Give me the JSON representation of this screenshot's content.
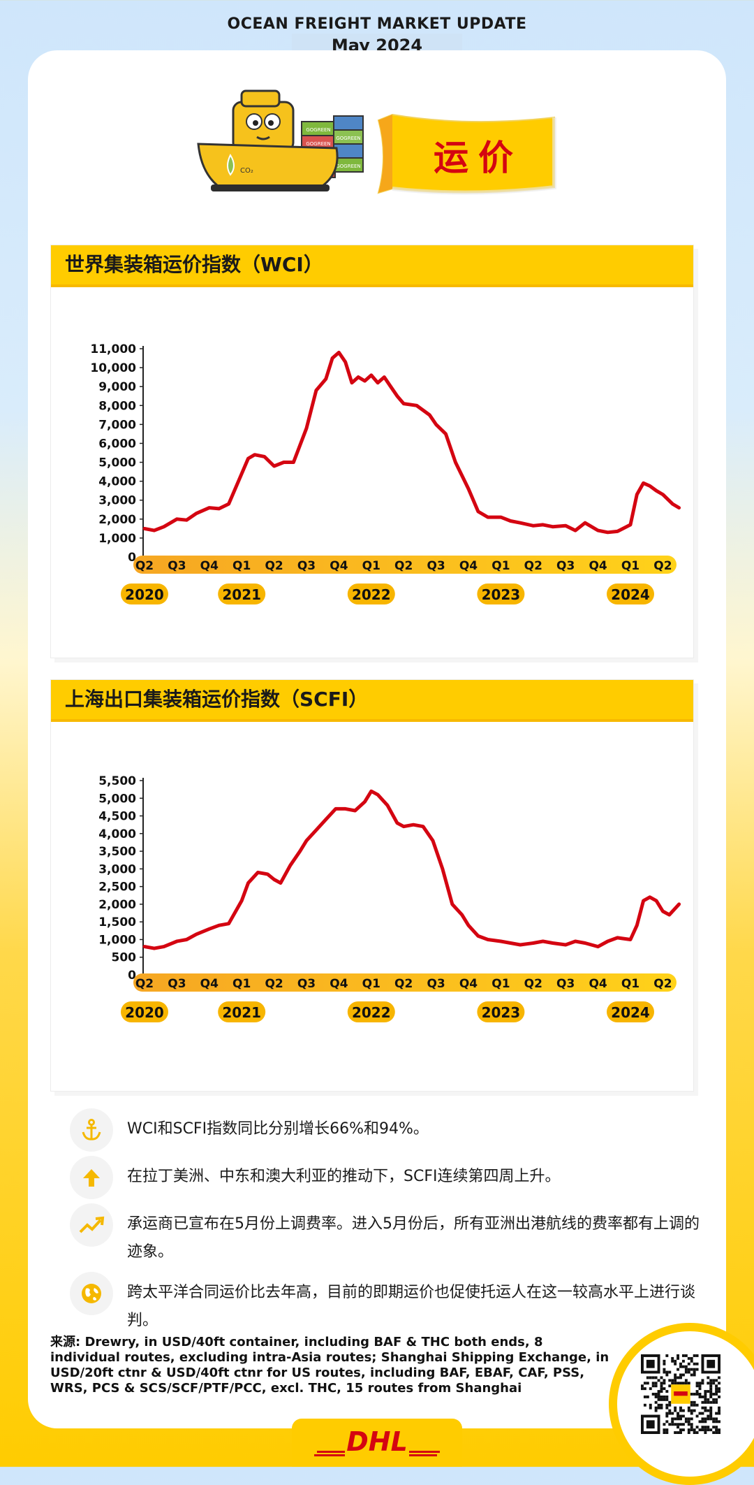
{
  "header": {
    "title": "OCEAN FREIGHT MARKET UPDATE",
    "subtitle": "May 2024"
  },
  "hero": {
    "banner_text": "运价",
    "ship_badge": "CO₂",
    "container_text": "GOGREEN"
  },
  "colors": {
    "brand_yellow": "#ffcc00",
    "dhl_red": "#d40511",
    "line": "#d40511",
    "quarter_bar": "#f7b500"
  },
  "chart_data": [
    {
      "type": "line",
      "title": "世界集装箱运价指数（WCI）",
      "ylim": [
        0,
        11000
      ],
      "yticks": [
        "0",
        "1,000",
        "2,000",
        "3,000",
        "4,000",
        "5,000",
        "6,000",
        "7,000",
        "8,000",
        "9,000",
        "10,000",
        "11,000"
      ],
      "quarters": [
        "Q2",
        "Q3",
        "Q4",
        "Q1",
        "Q2",
        "Q3",
        "Q4",
        "Q1",
        "Q2",
        "Q3",
        "Q4",
        "Q1",
        "Q2",
        "Q3",
        "Q4",
        "Q1",
        "Q2"
      ],
      "years": [
        {
          "label": "2020",
          "q": 0
        },
        {
          "label": "2021",
          "q": 3
        },
        {
          "label": "2022",
          "q": 7
        },
        {
          "label": "2023",
          "q": 11
        },
        {
          "label": "2024",
          "q": 15
        }
      ],
      "x_unit": "quarter index (0 = Q2 2020)",
      "series": [
        {
          "x": [
            0,
            0.3,
            0.6,
            1,
            1.3,
            1.6,
            2,
            2.3,
            2.6,
            3,
            3.2,
            3.4,
            3.7,
            4,
            4.3,
            4.6,
            5,
            5.3,
            5.6,
            5.8,
            6,
            6.2,
            6.4,
            6.6,
            6.8,
            7,
            7.2,
            7.4,
            7.6,
            7.8,
            8,
            8.4,
            8.8,
            9,
            9.3,
            9.6,
            10,
            10.3,
            10.6,
            11,
            11.3,
            11.6,
            12,
            12.3,
            12.6,
            13,
            13.3,
            13.6,
            14,
            14.3,
            14.6,
            15,
            15.2,
            15.4,
            15.6,
            15.8,
            16,
            16.3,
            16.5
          ],
          "y": [
            1500,
            1400,
            1600,
            2000,
            1950,
            2300,
            2600,
            2550,
            2800,
            4400,
            5200,
            5400,
            5300,
            4800,
            5000,
            5000,
            6800,
            8800,
            9400,
            10500,
            10800,
            10300,
            9200,
            9500,
            9300,
            9600,
            9200,
            9500,
            9000,
            8500,
            8100,
            8000,
            7500,
            7000,
            6500,
            5000,
            3600,
            2400,
            2100,
            2100,
            1900,
            1800,
            1650,
            1700,
            1600,
            1650,
            1400,
            1800,
            1400,
            1300,
            1350,
            1700,
            3300,
            3900,
            3750,
            3500,
            3300,
            2800,
            2600
          ]
        }
      ]
    },
    {
      "type": "line",
      "title": "上海出口集装箱运价指数（SCFI）",
      "ylim": [
        0,
        5500
      ],
      "yticks": [
        "0",
        "500",
        "1,000",
        "1,500",
        "2,000",
        "2,500",
        "3,000",
        "3,500",
        "4,000",
        "4,500",
        "5,000",
        "5,500"
      ],
      "quarters": [
        "Q2",
        "Q3",
        "Q4",
        "Q1",
        "Q2",
        "Q3",
        "Q4",
        "Q1",
        "Q2",
        "Q3",
        "Q4",
        "Q1",
        "Q2",
        "Q3",
        "Q4",
        "Q1",
        "Q2"
      ],
      "years": [
        {
          "label": "2020",
          "q": 0
        },
        {
          "label": "2021",
          "q": 3
        },
        {
          "label": "2022",
          "q": 7
        },
        {
          "label": "2023",
          "q": 11
        },
        {
          "label": "2024",
          "q": 15
        }
      ],
      "x_unit": "quarter index (0 = Q2 2020)",
      "series": [
        {
          "x": [
            0,
            0.3,
            0.6,
            1,
            1.3,
            1.6,
            2,
            2.3,
            2.6,
            3,
            3.2,
            3.5,
            3.8,
            4,
            4.2,
            4.5,
            4.8,
            5,
            5.3,
            5.6,
            5.9,
            6.2,
            6.5,
            6.8,
            7,
            7.2,
            7.5,
            7.8,
            8,
            8.3,
            8.6,
            8.9,
            9.2,
            9.5,
            9.8,
            10,
            10.3,
            10.6,
            11,
            11.3,
            11.6,
            12,
            12.3,
            12.6,
            13,
            13.3,
            13.6,
            14,
            14.3,
            14.6,
            15,
            15.2,
            15.4,
            15.6,
            15.8,
            16,
            16.2,
            16.5
          ],
          "y": [
            800,
            750,
            800,
            950,
            1000,
            1150,
            1300,
            1400,
            1450,
            2100,
            2600,
            2900,
            2850,
            2700,
            2600,
            3100,
            3500,
            3800,
            4100,
            4400,
            4700,
            4700,
            4650,
            4900,
            5200,
            5100,
            4800,
            4300,
            4200,
            4250,
            4200,
            3800,
            3000,
            2000,
            1700,
            1400,
            1100,
            1000,
            950,
            900,
            850,
            900,
            950,
            900,
            850,
            950,
            900,
            800,
            950,
            1050,
            1000,
            1400,
            2100,
            2200,
            2100,
            1800,
            1700,
            2000
          ]
        }
      ]
    }
  ],
  "bullets": [
    {
      "icon": "anchor-icon",
      "text": "WCI和SCFI指数同比分别增长66%和94%。"
    },
    {
      "icon": "arrow-up-icon",
      "text": "在拉丁美洲、中东和澳大利亚的推动下，SCFI连续第四周上升。"
    },
    {
      "icon": "trend-up-icon",
      "text": "承运商已宣布在5月份上调费率。进入5月份后，所有亚洲出港航线的费率都有上调的迹象。"
    },
    {
      "icon": "globe-icon",
      "text": "跨太平洋合同运价比去年高，目前的即期运价也促使托运人在这一较高水平上进行谈判。"
    }
  ],
  "source": "来源: Drewry, in USD/40ft container, including BAF & THC both ends, 8 individual routes, excluding intra-Asia routes;  Shanghai Shipping Exchange, in USD/20ft ctnr & USD/40ft ctnr for US routes, including BAF, EBAF, CAF, PSS, WRS, PCS & SCS/SCF/PTF/PCC, excl. THC, 15 routes from Shanghai",
  "footer": {
    "logo_text": "DHL"
  }
}
